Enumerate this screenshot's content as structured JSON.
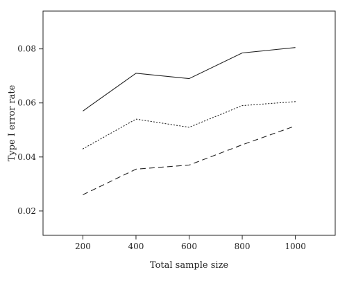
{
  "chart_data": {
    "type": "line",
    "title": "",
    "xlabel": "Total sample size",
    "ylabel": "Type I error rate",
    "x": [
      200,
      400,
      600,
      800,
      1000
    ],
    "x_ticks": [
      "200",
      "400",
      "600",
      "800",
      "1000"
    ],
    "y_ticks": [
      "0.02",
      "0.04",
      "0.06",
      "0.08"
    ],
    "xlim": [
      50,
      1150
    ],
    "ylim": [
      0.011,
      0.094
    ],
    "grid": false,
    "series": [
      {
        "values": [
          0.057,
          0.071,
          0.069,
          0.0785,
          0.0805
        ],
        "line_style": "solid"
      },
      {
        "values": [
          0.043,
          0.054,
          0.051,
          0.059,
          0.0605
        ],
        "line_style": "dotted"
      },
      {
        "values": [
          0.026,
          0.0355,
          0.037,
          0.0445,
          0.0515
        ],
        "line_style": "dashed"
      }
    ]
  }
}
